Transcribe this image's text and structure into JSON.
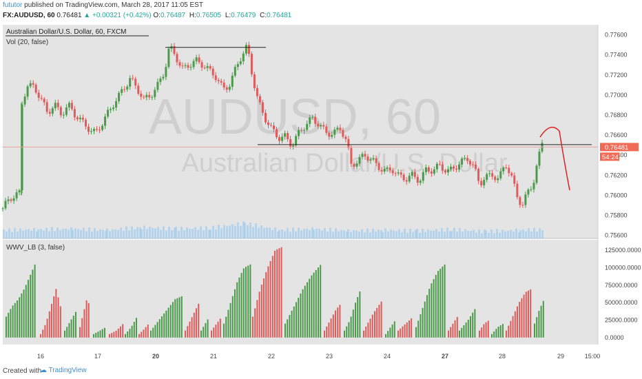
{
  "header": {
    "user": "fututor",
    "published": " published on TradingView.com, March 28, 2017 11:05 EST",
    "symbol": "FX:AUDUSD, 60",
    "last": "0.76481",
    "change": "▲ +0.00321 (+0.42%)",
    "o_label": "O:",
    "o": "0.76487",
    "h_label": "H:",
    "h": "0.76505",
    "l_label": "L:",
    "l": "0.76479",
    "c_label": "C:",
    "c": "0.76481"
  },
  "footer": {
    "created_with": "Created with",
    "brand": "TradingView"
  },
  "colors": {
    "up": "#4a9a4a",
    "down": "#e05a5a",
    "background": "#e4e4e4",
    "price_line": "#e8a0a0",
    "tag": "#f06a55",
    "annotation": "#e02020",
    "volume": "#9ec7e8"
  },
  "chart_data": [
    {
      "type": "candlestick",
      "title": "Australian Dollar/U.S. Dollar, 60, FXCM",
      "indicator_label": "Vol (20, false)",
      "watermark_symbol": "AUDUSD, 60",
      "watermark_name": "Australian Dollar/U.S. Dollar",
      "y_ticks": [
        "0.77600",
        "0.77400",
        "0.77200",
        "0.77000",
        "0.76800",
        "0.76600",
        "0.76400",
        "0.76200",
        "0.76000",
        "0.75800",
        "0.75600"
      ],
      "ylim": [
        0.7557,
        0.777
      ],
      "x_ticks": [
        "16",
        "17",
        "20",
        "21",
        "22",
        "23",
        "24",
        "27",
        "28",
        "29",
        "15:00"
      ],
      "last_price_tag": "0.76481",
      "countdown_tag": "54:24",
      "close_path": [
        [
          0,
          0.7587
        ],
        [
          10,
          0.7594
        ],
        [
          20,
          0.76
        ],
        [
          27,
          0.7603
        ],
        [
          28,
          0.7692
        ],
        [
          35,
          0.7712
        ],
        [
          45,
          0.7709
        ],
        [
          55,
          0.7695
        ],
        [
          65,
          0.768
        ],
        [
          75,
          0.7692
        ],
        [
          85,
          0.7683
        ],
        [
          95,
          0.769
        ],
        [
          105,
          0.7678
        ],
        [
          115,
          0.7672
        ],
        [
          125,
          0.7668
        ],
        [
          135,
          0.7664
        ],
        [
          145,
          0.7672
        ],
        [
          155,
          0.7682
        ],
        [
          165,
          0.7695
        ],
        [
          175,
          0.7708
        ],
        [
          185,
          0.7718
        ],
        [
          195,
          0.7705
        ],
        [
          205,
          0.7693
        ],
        [
          215,
          0.77
        ],
        [
          225,
          0.7712
        ],
        [
          235,
          0.7725
        ],
        [
          242,
          0.7747
        ],
        [
          250,
          0.7738
        ],
        [
          260,
          0.7725
        ],
        [
          270,
          0.7732
        ],
        [
          280,
          0.7736
        ],
        [
          290,
          0.7729
        ],
        [
          300,
          0.7722
        ],
        [
          310,
          0.7718
        ],
        [
          320,
          0.7708
        ],
        [
          330,
          0.7712
        ],
        [
          340,
          0.7728
        ],
        [
          350,
          0.7741
        ],
        [
          355,
          0.7748
        ],
        [
          362,
          0.7722
        ],
        [
          370,
          0.7698
        ],
        [
          380,
          0.7678
        ],
        [
          390,
          0.7664
        ],
        [
          400,
          0.7656
        ],
        [
          410,
          0.766
        ],
        [
          420,
          0.7652
        ],
        [
          430,
          0.7662
        ],
        [
          440,
          0.7668
        ],
        [
          450,
          0.7676
        ],
        [
          460,
          0.7672
        ],
        [
          470,
          0.7664
        ],
        [
          480,
          0.766
        ],
        [
          490,
          0.7665
        ],
        [
          500,
          0.7652
        ],
        [
          505,
          0.7632
        ],
        [
          515,
          0.7636
        ],
        [
          525,
          0.764
        ],
        [
          535,
          0.7633
        ],
        [
          545,
          0.7628
        ],
        [
          555,
          0.7626
        ],
        [
          565,
          0.7628
        ],
        [
          575,
          0.7618
        ],
        [
          585,
          0.7614
        ],
        [
          595,
          0.762
        ],
        [
          605,
          0.7617
        ],
        [
          615,
          0.7627
        ],
        [
          625,
          0.7623
        ],
        [
          635,
          0.7628
        ],
        [
          645,
          0.7624
        ],
        [
          655,
          0.763
        ],
        [
          665,
          0.7633
        ],
        [
          675,
          0.7635
        ],
        [
          685,
          0.7625
        ],
        [
          692,
          0.7612
        ],
        [
          700,
          0.762
        ],
        [
          710,
          0.7622
        ],
        [
          720,
          0.7614
        ],
        [
          730,
          0.763
        ],
        [
          740,
          0.7616
        ],
        [
          748,
          0.7599
        ],
        [
          755,
          0.7592
        ],
        [
          762,
          0.7603
        ],
        [
          770,
          0.761
        ],
        [
          777,
          0.7632
        ],
        [
          783,
          0.7652
        ]
      ],
      "bar_count": 196,
      "horizontal_lines": [
        {
          "value": 0.77475,
          "from": 236,
          "to": 382
        },
        {
          "value": 0.76505,
          "from": 370,
          "to": 855
        }
      ],
      "current_price_line": 0.76481,
      "forecast_arc": [
        [
          780,
          0.7658
        ],
        [
          795,
          0.767
        ],
        [
          808,
          0.7664
        ],
        [
          816,
          0.763
        ],
        [
          823,
          0.7605
        ]
      ],
      "volume_profile": [
        [
          0,
          12
        ],
        [
          50,
          13
        ],
        [
          100,
          14
        ],
        [
          150,
          12
        ],
        [
          200,
          16
        ],
        [
          250,
          14
        ],
        [
          300,
          15
        ],
        [
          350,
          22
        ],
        [
          400,
          12
        ],
        [
          450,
          14
        ],
        [
          500,
          11
        ],
        [
          550,
          12
        ],
        [
          600,
          11
        ],
        [
          650,
          13
        ],
        [
          700,
          10
        ],
        [
          750,
          12
        ],
        [
          783,
          13
        ]
      ]
    },
    {
      "type": "bar",
      "indicator_label": "WWV_LB (3, false)",
      "y_ticks": [
        "125000.0000",
        "100000.0000",
        "75000.0000",
        "50000.0000",
        "25000.0000",
        "0.0000"
      ],
      "ylim": [
        -10000,
        140000
      ],
      "segments": [
        {
          "color": "up",
          "from": 5,
          "to": 49,
          "values": [
            30000,
            45000,
            55000,
            70000,
            90000,
            110000
          ]
        },
        {
          "color": "down",
          "from": 55,
          "to": 85,
          "values": [
            5000,
            20000,
            45000,
            70000,
            40000
          ]
        },
        {
          "color": "up",
          "from": 90,
          "to": 108,
          "values": [
            10000,
            20000,
            30000,
            40000
          ]
        },
        {
          "color": "down",
          "from": 112,
          "to": 127,
          "values": [
            15000,
            35000,
            55000,
            45000
          ]
        },
        {
          "color": "up",
          "from": 132,
          "to": 150,
          "values": [
            5000,
            10000,
            15000
          ]
        },
        {
          "color": "down",
          "from": 155,
          "to": 175,
          "values": [
            5000,
            10000,
            20000
          ]
        },
        {
          "color": "up",
          "from": 178,
          "to": 195,
          "values": [
            5000,
            15000,
            30000
          ]
        },
        {
          "color": "down",
          "from": 198,
          "to": 212,
          "values": [
            5000,
            12000,
            20000
          ]
        },
        {
          "color": "up",
          "from": 215,
          "to": 262,
          "values": [
            10000,
            25000,
            40000,
            55000,
            60000
          ]
        },
        {
          "color": "down",
          "from": 265,
          "to": 285,
          "values": [
            10000,
            30000,
            50000
          ]
        },
        {
          "color": "up",
          "from": 288,
          "to": 300,
          "values": [
            10000,
            20000,
            30000
          ]
        },
        {
          "color": "down",
          "from": 303,
          "to": 318,
          "values": [
            10000,
            20000,
            30000
          ]
        },
        {
          "color": "up",
          "from": 321,
          "to": 360,
          "values": [
            20000,
            50000,
            80000,
            100000,
            105000
          ]
        },
        {
          "color": "down",
          "from": 363,
          "to": 406,
          "values": [
            30000,
            70000,
            100000,
            125000,
            130000
          ]
        },
        {
          "color": "up",
          "from": 410,
          "to": 462,
          "values": [
            20000,
            45000,
            70000,
            90000,
            105000
          ]
        },
        {
          "color": "down",
          "from": 467,
          "to": 492,
          "values": [
            10000,
            25000,
            40000,
            50000
          ]
        },
        {
          "color": "up",
          "from": 496,
          "to": 520,
          "values": [
            10000,
            25000,
            50000,
            70000
          ]
        },
        {
          "color": "down",
          "from": 524,
          "to": 552,
          "values": [
            10000,
            35000,
            55000
          ]
        },
        {
          "color": "up",
          "from": 556,
          "to": 570,
          "values": [
            5000,
            15000,
            25000
          ]
        },
        {
          "color": "down",
          "from": 574,
          "to": 596,
          "values": [
            10000,
            20000,
            30000
          ]
        },
        {
          "color": "up",
          "from": 600,
          "to": 642,
          "values": [
            15000,
            45000,
            75000,
            95000,
            105000
          ]
        },
        {
          "color": "down",
          "from": 647,
          "to": 660,
          "values": [
            10000,
            20000,
            30000
          ]
        },
        {
          "color": "up",
          "from": 663,
          "to": 688,
          "values": [
            10000,
            25000,
            45000
          ]
        },
        {
          "color": "down",
          "from": 692,
          "to": 706,
          "values": [
            10000,
            20000,
            25000
          ]
        },
        {
          "color": "up",
          "from": 710,
          "to": 727,
          "values": [
            5000,
            15000,
            20000
          ]
        },
        {
          "color": "down",
          "from": 731,
          "to": 768,
          "values": [
            10000,
            30000,
            50000,
            65000,
            70000
          ]
        },
        {
          "color": "up",
          "from": 772,
          "to": 786,
          "values": [
            20000,
            40000,
            55000
          ]
        }
      ]
    }
  ]
}
